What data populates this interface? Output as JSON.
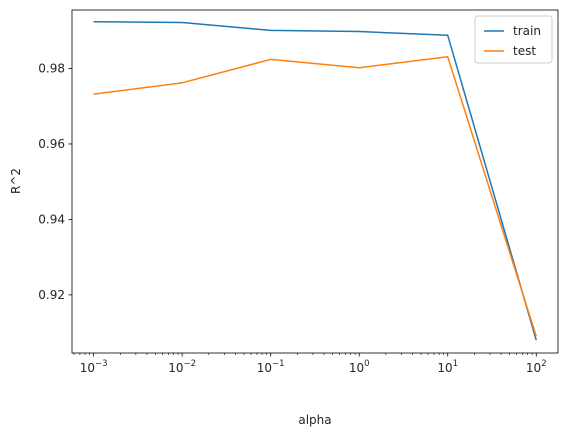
{
  "chart_data": {
    "type": "line",
    "title": "",
    "xlabel": "alpha",
    "ylabel": "R^2",
    "xscale": "log",
    "x": [
      0.001,
      0.01,
      0.1,
      1,
      10,
      100
    ],
    "xlim": [
      0.00057,
      176
    ],
    "ylim": [
      0.9046,
      0.9955
    ],
    "x_tick_labels": [
      {
        "value": 0.001,
        "base": "10",
        "exp": "−3"
      },
      {
        "value": 0.01,
        "base": "10",
        "exp": "−2"
      },
      {
        "value": 0.1,
        "base": "10",
        "exp": "−1"
      },
      {
        "value": 1,
        "base": "10",
        "exp": "0"
      },
      {
        "value": 10,
        "base": "10",
        "exp": "1"
      },
      {
        "value": 100,
        "base": "10",
        "exp": "2"
      }
    ],
    "y_ticks": [
      0.92,
      0.94,
      0.96,
      0.98
    ],
    "y_tick_labels": [
      "0.92",
      "0.94",
      "0.96",
      "0.98"
    ],
    "grid": false,
    "legend_position": "top-right",
    "series": [
      {
        "name": "train",
        "color": "#1f77b4",
        "values": [
          0.9924,
          0.9922,
          0.9901,
          0.9898,
          0.9888,
          0.908
        ]
      },
      {
        "name": "test",
        "color": "#ff7f0e",
        "values": [
          0.9732,
          0.9762,
          0.9824,
          0.9802,
          0.9831,
          0.909
        ]
      }
    ]
  }
}
